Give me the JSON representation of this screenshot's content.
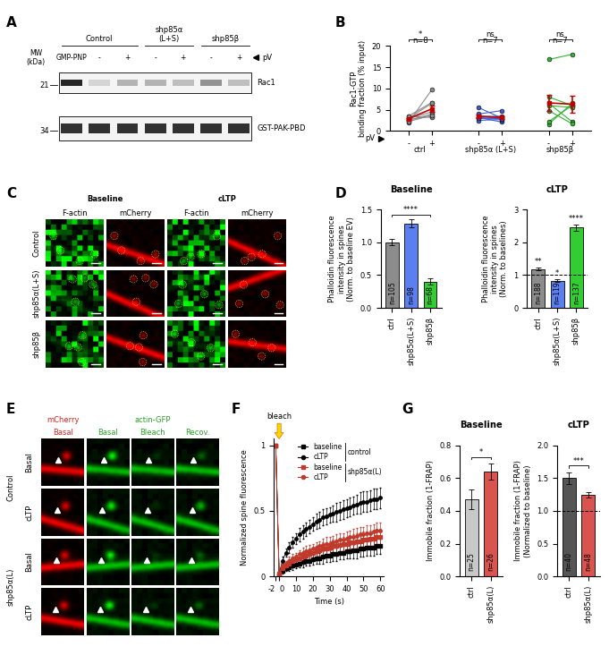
{
  "panel_labels": [
    "A",
    "B",
    "C",
    "D",
    "E",
    "F",
    "G"
  ],
  "blot": {
    "groups": [
      {
        "label": "Control",
        "lanes": [
          0,
          1,
          2
        ]
      },
      {
        "label": "shp85α\n(L+S)",
        "lanes": [
          3,
          4
        ]
      },
      {
        "label": "shp85β",
        "lanes": [
          5,
          6
        ]
      }
    ],
    "lanes": [
      "GMP-PNP",
      "-",
      "+",
      "-",
      "+",
      "-",
      "+"
    ],
    "pV_label": "pV",
    "mw_label": "MW\n(kDa)",
    "bands": [
      {
        "label": "Rac1",
        "mw": 21,
        "intensity": [
          1.0,
          0.2,
          0.35,
          0.35,
          0.3,
          0.5,
          0.3
        ]
      },
      {
        "label": "GST-PAK-PBD",
        "mw": 34,
        "intensity": [
          0.95,
          0.95,
          0.95,
          0.95,
          0.95,
          0.95,
          0.95
        ]
      }
    ]
  },
  "micrographs_C": {
    "conditions": [
      "Baseline",
      "cLTP"
    ],
    "channels": [
      "F-actin",
      "mCherry"
    ],
    "rows": [
      "Control",
      "shp85α(L+S)",
      "shp85β"
    ]
  },
  "micrographs_E": {
    "columns": [
      "mCherry",
      "actin-GFP"
    ],
    "subcolumns": [
      "Basal",
      "Basal",
      "Bleach",
      "Recov."
    ],
    "groups": [
      {
        "label": "Control",
        "rows": [
          "Basal",
          "cLTP"
        ]
      },
      {
        "label": "shp85α(L)",
        "rows": [
          "Basal",
          "cLTP"
        ]
      }
    ]
  },
  "chart_data": [
    {
      "type": "paired_scatter",
      "y_label": "Rac1-GTP\nbinding fraction (% input)",
      "ylim": [
        0,
        20
      ],
      "yticks": [
        0,
        5,
        10,
        15,
        20
      ],
      "x_label": "pV",
      "conditions": [
        "-",
        "+"
      ],
      "series": [
        {
          "name": "ctrl",
          "color": "#8c8c8c",
          "n_label": "n=8",
          "significance": "*",
          "values": [
            [
              2.0,
              9.7
            ],
            [
              3.0,
              6.5
            ],
            [
              2.5,
              4.0
            ],
            [
              2.7,
              3.5
            ],
            [
              3.4,
              3.2
            ],
            [
              2.9,
              4.5
            ],
            [
              3.5,
              6.7
            ],
            [
              2.2,
              3.7
            ]
          ],
          "mean": [
            2.9,
            5.2
          ],
          "sem": [
            0.2,
            0.8
          ]
        },
        {
          "name": "shp85α (L+S)",
          "color": "#3a5fcd",
          "n_label": "n=7",
          "significance": "ns",
          "values": [
            [
              3.0,
              3.2
            ],
            [
              4.0,
              4.8
            ],
            [
              3.2,
              2.1
            ],
            [
              5.5,
              3.0
            ],
            [
              2.5,
              2.7
            ],
            [
              3.3,
              3.5
            ],
            [
              3.0,
              2.9
            ]
          ],
          "mean": [
            3.5,
            3.2
          ],
          "sem": [
            0.4,
            0.3
          ]
        },
        {
          "name": "shp85β",
          "color": "#33b233",
          "n_label": "n=7",
          "significance": "ns",
          "values": [
            [
              16.8,
              18.0
            ],
            [
              8.0,
              6.0
            ],
            [
              6.5,
              2.2
            ],
            [
              4.8,
              1.7
            ],
            [
              1.6,
              6.5
            ],
            [
              2.2,
              6.0
            ],
            [
              6.0,
              5.5
            ]
          ],
          "mean": [
            6.6,
            6.3
          ],
          "sem": [
            1.9,
            2.0
          ]
        }
      ]
    },
    {
      "type": "bar",
      "title": "Baseline",
      "y_label": "Phalloidin fluorescence\nintensity in spines\n(Norm. to baseline EV)",
      "categories": [
        "ctrl",
        "shp85α(L+S)",
        "shp85β"
      ],
      "values": [
        1.0,
        1.29,
        0.4
      ],
      "errors": [
        0.05,
        0.06,
        0.05
      ],
      "colors": [
        "#8c8c8c",
        "#5b7ff0",
        "#33cc33"
      ],
      "n_labels": [
        "n=105",
        "n=98",
        "n=68"
      ],
      "ylim": [
        0,
        1.5
      ],
      "yticks": [
        0.0,
        0.5,
        1.0,
        1.5
      ],
      "significance": [
        {
          "from": 0,
          "to": 2,
          "label": "****"
        }
      ]
    },
    {
      "type": "bar",
      "title": "cLTP",
      "y_label": "Phalloidin fluorescence\nintensity in spines\n(Norm. to baselines)",
      "categories": [
        "ctrl",
        "shp85α(L+S)",
        "shp85β"
      ],
      "values": [
        1.18,
        0.83,
        2.45
      ],
      "errors": [
        0.04,
        0.04,
        0.1
      ],
      "colors": [
        "#8c8c8c",
        "#5b7ff0",
        "#33cc33"
      ],
      "n_labels": [
        "n=188",
        "n=119",
        "n=137"
      ],
      "ylim": [
        0,
        3
      ],
      "yticks": [
        0,
        1,
        2,
        3
      ],
      "bar_significance": [
        "**",
        "*",
        "****"
      ],
      "reference_line": 1
    },
    {
      "type": "line",
      "x_label": "Time (s)",
      "y_label": "Normalized spine fluorescence",
      "x": [
        -2,
        0,
        2,
        4,
        6,
        8,
        10,
        12,
        14,
        16,
        18,
        20,
        22,
        24,
        26,
        28,
        30,
        32,
        34,
        36,
        38,
        40,
        42,
        44,
        46,
        48,
        50,
        52,
        54,
        56,
        58,
        60
      ],
      "xlim": [
        -3,
        62
      ],
      "xticks": [
        -2,
        0,
        10,
        20,
        30,
        40,
        50,
        60
      ],
      "ylim": [
        0,
        1.05
      ],
      "yticks": [
        0,
        0.5,
        1
      ],
      "legend": "upper center",
      "annotations": [
        {
          "text": "bleach",
          "x": 0
        }
      ],
      "series": [
        {
          "name": "baseline",
          "group": "control",
          "color": "#000000",
          "marker": "square",
          "values": [
            1.0,
            0.01,
            0.04,
            0.06,
            0.07,
            0.08,
            0.09,
            0.1,
            0.11,
            0.12,
            0.12,
            0.13,
            0.14,
            0.14,
            0.15,
            0.16,
            0.16,
            0.17,
            0.17,
            0.18,
            0.18,
            0.19,
            0.19,
            0.2,
            0.2,
            0.21,
            0.21,
            0.22,
            0.22,
            0.22,
            0.23,
            0.23
          ],
          "errors": [
            0,
            0.01,
            0.02,
            0.02,
            0.03,
            0.03,
            0.03,
            0.03,
            0.04,
            0.04,
            0.04,
            0.04,
            0.04,
            0.04,
            0.05,
            0.05,
            0.05,
            0.05,
            0.05,
            0.05,
            0.05,
            0.05,
            0.05,
            0.06,
            0.06,
            0.06,
            0.06,
            0.06,
            0.06,
            0.06,
            0.06,
            0.06
          ]
        },
        {
          "name": "cLTP",
          "group": "control",
          "color": "#000000",
          "marker": "circle",
          "values": [
            1.0,
            0.02,
            0.12,
            0.18,
            0.22,
            0.26,
            0.29,
            0.32,
            0.34,
            0.36,
            0.38,
            0.4,
            0.42,
            0.43,
            0.45,
            0.46,
            0.47,
            0.48,
            0.49,
            0.5,
            0.51,
            0.52,
            0.53,
            0.54,
            0.55,
            0.56,
            0.57,
            0.57,
            0.58,
            0.59,
            0.59,
            0.6
          ],
          "errors": [
            0,
            0.01,
            0.03,
            0.03,
            0.04,
            0.04,
            0.04,
            0.05,
            0.05,
            0.05,
            0.05,
            0.05,
            0.06,
            0.06,
            0.06,
            0.06,
            0.06,
            0.06,
            0.07,
            0.07,
            0.07,
            0.07,
            0.07,
            0.07,
            0.07,
            0.08,
            0.08,
            0.08,
            0.08,
            0.08,
            0.08,
            0.08
          ]
        },
        {
          "name": "baseline",
          "group": "shp85α(L)",
          "color": "#c0392b",
          "marker": "square",
          "values": [
            1.0,
            0.02,
            0.06,
            0.08,
            0.1,
            0.12,
            0.13,
            0.14,
            0.15,
            0.16,
            0.17,
            0.18,
            0.19,
            0.2,
            0.21,
            0.21,
            0.22,
            0.23,
            0.23,
            0.24,
            0.25,
            0.25,
            0.26,
            0.26,
            0.27,
            0.27,
            0.28,
            0.28,
            0.29,
            0.29,
            0.3,
            0.3
          ],
          "errors": [
            0,
            0.01,
            0.02,
            0.02,
            0.03,
            0.03,
            0.03,
            0.03,
            0.04,
            0.04,
            0.04,
            0.04,
            0.04,
            0.04,
            0.05,
            0.05,
            0.05,
            0.05,
            0.05,
            0.05,
            0.05,
            0.05,
            0.05,
            0.06,
            0.06,
            0.06,
            0.06,
            0.06,
            0.06,
            0.06,
            0.06,
            0.06
          ]
        },
        {
          "name": "cLTP",
          "group": "shp85α(L)",
          "color": "#c0392b",
          "marker": "circle",
          "values": [
            1.0,
            0.02,
            0.08,
            0.1,
            0.12,
            0.14,
            0.15,
            0.17,
            0.18,
            0.19,
            0.2,
            0.21,
            0.22,
            0.23,
            0.24,
            0.25,
            0.25,
            0.26,
            0.27,
            0.28,
            0.28,
            0.29,
            0.3,
            0.3,
            0.31,
            0.32,
            0.32,
            0.33,
            0.33,
            0.34,
            0.35,
            0.35
          ],
          "errors": [
            0,
            0.01,
            0.02,
            0.02,
            0.03,
            0.03,
            0.03,
            0.03,
            0.04,
            0.04,
            0.04,
            0.04,
            0.04,
            0.04,
            0.05,
            0.05,
            0.05,
            0.05,
            0.05,
            0.05,
            0.05,
            0.05,
            0.05,
            0.06,
            0.06,
            0.06,
            0.06,
            0.06,
            0.06,
            0.06,
            0.06,
            0.06
          ]
        }
      ]
    },
    {
      "type": "bar",
      "title": "Baseline",
      "y_label": "Immobile fraction (1-FRAP)",
      "categories": [
        "ctrl",
        "shp85α(L)"
      ],
      "values": [
        0.47,
        0.64
      ],
      "errors": [
        0.06,
        0.05
      ],
      "colors": [
        "#c8c8c8",
        "#d9534f"
      ],
      "n_labels": [
        "n=25",
        "n=26"
      ],
      "ylim": [
        0,
        0.8
      ],
      "yticks": [
        0.0,
        0.2,
        0.4,
        0.6,
        0.8
      ],
      "significance": [
        {
          "from": 0,
          "to": 1,
          "label": "*"
        }
      ]
    },
    {
      "type": "bar",
      "title": "cLTP",
      "y_label": "Immobile fraction (1-FRAP)\n(Normalized to baseline)",
      "categories": [
        "ctrl",
        "shp85α(L)"
      ],
      "values": [
        1.5,
        1.25
      ],
      "errors": [
        0.09,
        0.04
      ],
      "colors": [
        "#555555",
        "#d9534f"
      ],
      "n_labels": [
        "n=40",
        "n=48"
      ],
      "ylim": [
        0,
        2.0
      ],
      "yticks": [
        0.0,
        0.5,
        1.0,
        1.5,
        2.0
      ],
      "significance": [
        {
          "from": 0,
          "to": 1,
          "label": "***"
        }
      ],
      "reference_line": 1
    }
  ]
}
